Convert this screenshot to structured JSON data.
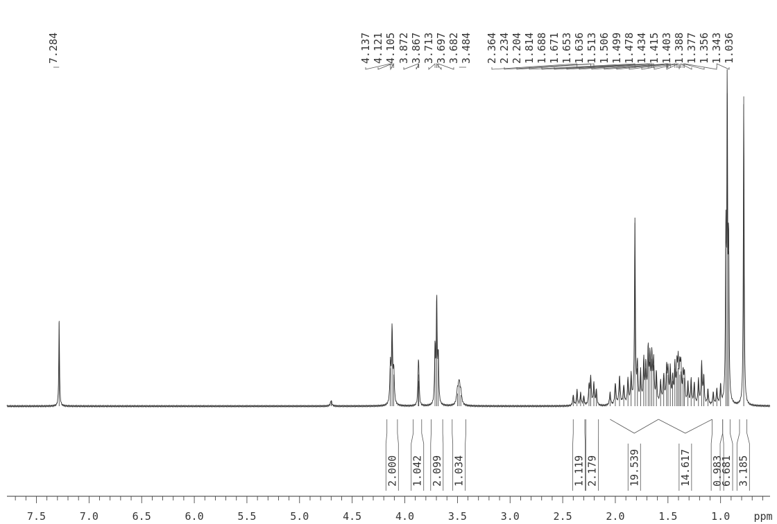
{
  "chart_data": {
    "type": "line",
    "xlabel": "ppm",
    "x_reversed": true,
    "xlim": [
      7.78,
      0.53
    ],
    "x_ticks": [
      7.5,
      7.0,
      6.5,
      6.0,
      5.5,
      5.0,
      4.5,
      4.0,
      3.5,
      3.0,
      2.5,
      2.0,
      1.5,
      1.0
    ],
    "x_tick_labels": [
      "7.5",
      "7.0",
      "6.5",
      "6.0",
      "5.5",
      "5.0",
      "4.5",
      "4.0",
      "3.5",
      "3.0",
      "2.5",
      "2.0",
      "1.5",
      "1.0"
    ],
    "peak_groups": [
      {
        "values": [
          "7.284"
        ],
        "positions": [
          7.284
        ]
      },
      {
        "values": [
          "4.137",
          "4.121",
          "4.105"
        ],
        "positions": [
          4.137,
          4.121,
          4.105
        ]
      },
      {
        "values": [
          "3.872",
          "3.867"
        ],
        "positions": [
          3.872,
          3.867
        ]
      },
      {
        "values": [
          "3.713",
          "3.697",
          "3.682"
        ],
        "positions": [
          3.713,
          3.697,
          3.682
        ]
      },
      {
        "values": [
          "3.484"
        ],
        "positions": [
          3.484
        ]
      },
      {
        "values": [
          "2.364",
          "2.234",
          "2.204",
          "1.814",
          "1.688",
          "1.671",
          "1.653",
          "1.636",
          "1.513",
          "1.506",
          "1.499",
          "1.478",
          "1.434",
          "1.415",
          "1.403",
          "1.388",
          "1.377",
          "1.356",
          "1.343",
          "1.036"
        ],
        "positions": [
          2.364,
          2.234,
          2.204,
          1.814,
          1.688,
          1.671,
          1.653,
          1.636,
          1.513,
          1.506,
          1.499,
          1.478,
          1.434,
          1.415,
          1.403,
          1.388,
          1.377,
          1.356,
          1.343,
          1.036
        ]
      }
    ],
    "integrals": [
      {
        "value": "2.000",
        "from": 4.17,
        "to": 4.07
      },
      {
        "value": "1.042",
        "from": 3.92,
        "to": 3.84
      },
      {
        "value": "2.099",
        "from": 3.75,
        "to": 3.64
      },
      {
        "value": "1.034",
        "from": 3.55,
        "to": 3.42
      },
      {
        "value": "1.119",
        "from": 2.4,
        "to": 2.29
      },
      {
        "value": "2.179",
        "from": 2.28,
        "to": 2.16
      },
      {
        "value": "19.539",
        "from": 2.05,
        "to": 1.59
      },
      {
        "value": "14.617",
        "from": 1.59,
        "to": 1.08
      },
      {
        "value": "0.983",
        "from": 1.08,
        "to": 0.98
      },
      {
        "value": "6.681",
        "from": 0.98,
        "to": 0.91
      },
      {
        "value": "3.185",
        "from": 0.82,
        "to": 0.75
      }
    ],
    "peaks": [
      {
        "ppm": 7.284,
        "height": 0.27,
        "width": 0.004
      },
      {
        "ppm": 4.7,
        "height": 0.018,
        "width": 0.008
      },
      {
        "ppm": 4.137,
        "height": 0.12,
        "width": 0.006
      },
      {
        "ppm": 4.121,
        "height": 0.24,
        "width": 0.006
      },
      {
        "ppm": 4.105,
        "height": 0.1,
        "width": 0.006
      },
      {
        "ppm": 3.872,
        "height": 0.1,
        "width": 0.005
      },
      {
        "ppm": 3.867,
        "height": 0.08,
        "width": 0.005
      },
      {
        "ppm": 3.713,
        "height": 0.18,
        "width": 0.005
      },
      {
        "ppm": 3.697,
        "height": 0.34,
        "width": 0.005
      },
      {
        "ppm": 3.682,
        "height": 0.15,
        "width": 0.005
      },
      {
        "ppm": 3.5,
        "height": 0.04,
        "width": 0.01
      },
      {
        "ppm": 3.484,
        "height": 0.065,
        "width": 0.01
      },
      {
        "ppm": 3.468,
        "height": 0.035,
        "width": 0.01
      },
      {
        "ppm": 2.4,
        "height": 0.035,
        "width": 0.006
      },
      {
        "ppm": 2.364,
        "height": 0.05,
        "width": 0.006
      },
      {
        "ppm": 2.33,
        "height": 0.04,
        "width": 0.006
      },
      {
        "ppm": 2.3,
        "height": 0.03,
        "width": 0.006
      },
      {
        "ppm": 2.25,
        "height": 0.06,
        "width": 0.006
      },
      {
        "ppm": 2.234,
        "height": 0.09,
        "width": 0.006
      },
      {
        "ppm": 2.204,
        "height": 0.07,
        "width": 0.006
      },
      {
        "ppm": 2.18,
        "height": 0.05,
        "width": 0.006
      },
      {
        "ppm": 2.05,
        "height": 0.04,
        "width": 0.007
      },
      {
        "ppm": 2.0,
        "height": 0.07,
        "width": 0.007
      },
      {
        "ppm": 1.96,
        "height": 0.09,
        "width": 0.007
      },
      {
        "ppm": 1.92,
        "height": 0.06,
        "width": 0.007
      },
      {
        "ppm": 1.88,
        "height": 0.08,
        "width": 0.007
      },
      {
        "ppm": 1.85,
        "height": 0.09,
        "width": 0.006
      },
      {
        "ppm": 1.814,
        "height": 0.58,
        "width": 0.005
      },
      {
        "ppm": 1.79,
        "height": 0.12,
        "width": 0.006
      },
      {
        "ppm": 1.76,
        "height": 0.1,
        "width": 0.006
      },
      {
        "ppm": 1.73,
        "height": 0.14,
        "width": 0.006
      },
      {
        "ppm": 1.71,
        "height": 0.12,
        "width": 0.006
      },
      {
        "ppm": 1.688,
        "height": 0.17,
        "width": 0.006
      },
      {
        "ppm": 1.671,
        "height": 0.14,
        "width": 0.006
      },
      {
        "ppm": 1.653,
        "height": 0.15,
        "width": 0.006
      },
      {
        "ppm": 1.636,
        "height": 0.13,
        "width": 0.006
      },
      {
        "ppm": 1.61,
        "height": 0.1,
        "width": 0.006
      },
      {
        "ppm": 1.57,
        "height": 0.07,
        "width": 0.007
      },
      {
        "ppm": 1.54,
        "height": 0.09,
        "width": 0.007
      },
      {
        "ppm": 1.513,
        "height": 0.11,
        "width": 0.006
      },
      {
        "ppm": 1.499,
        "height": 0.1,
        "width": 0.006
      },
      {
        "ppm": 1.478,
        "height": 0.11,
        "width": 0.006
      },
      {
        "ppm": 1.455,
        "height": 0.08,
        "width": 0.006
      },
      {
        "ppm": 1.434,
        "height": 0.12,
        "width": 0.006
      },
      {
        "ppm": 1.415,
        "height": 0.11,
        "width": 0.006
      },
      {
        "ppm": 1.403,
        "height": 0.12,
        "width": 0.006
      },
      {
        "ppm": 1.388,
        "height": 0.1,
        "width": 0.006
      },
      {
        "ppm": 1.377,
        "height": 0.11,
        "width": 0.006
      },
      {
        "ppm": 1.356,
        "height": 0.09,
        "width": 0.006
      },
      {
        "ppm": 1.343,
        "height": 0.09,
        "width": 0.006
      },
      {
        "ppm": 1.31,
        "height": 0.07,
        "width": 0.006
      },
      {
        "ppm": 1.28,
        "height": 0.08,
        "width": 0.006
      },
      {
        "ppm": 1.25,
        "height": 0.07,
        "width": 0.006
      },
      {
        "ppm": 1.21,
        "height": 0.08,
        "width": 0.006
      },
      {
        "ppm": 1.18,
        "height": 0.13,
        "width": 0.006
      },
      {
        "ppm": 1.16,
        "height": 0.09,
        "width": 0.006
      },
      {
        "ppm": 1.12,
        "height": 0.05,
        "width": 0.006
      },
      {
        "ppm": 1.07,
        "height": 0.04,
        "width": 0.006
      },
      {
        "ppm": 1.036,
        "height": 0.05,
        "width": 0.006
      },
      {
        "ppm": 1.0,
        "height": 0.06,
        "width": 0.006
      },
      {
        "ppm": 0.95,
        "height": 0.5,
        "width": 0.0045
      },
      {
        "ppm": 0.937,
        "height": 0.99,
        "width": 0.0045
      },
      {
        "ppm": 0.924,
        "height": 0.49,
        "width": 0.0045
      },
      {
        "ppm": 0.78,
        "height": 0.98,
        "width": 0.0045
      }
    ]
  }
}
